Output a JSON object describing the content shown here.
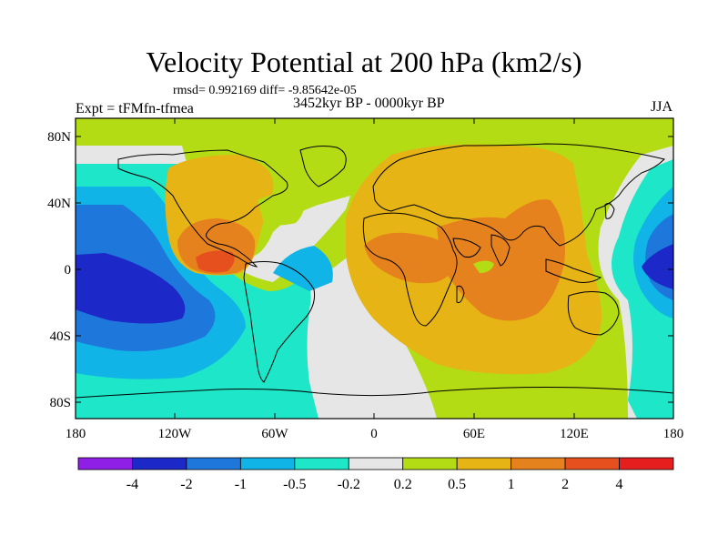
{
  "title": "Velocity Potential at 200 hPa (km2/s)",
  "stats": "rmsd= 0.992169 diff= -9.85642e-05",
  "experiment": "Expt = tFMfn-tfmea",
  "period": "3452kyr BP - 0000kyr BP",
  "season": "JJA",
  "map": {
    "projection": "cylindrical equidistant",
    "lat_ticks": [
      "80N",
      "40N",
      "0",
      "40S",
      "80S"
    ],
    "lon_ticks": [
      "180",
      "120W",
      "60W",
      "0",
      "60E",
      "120E",
      "180"
    ]
  },
  "colorbar": {
    "levels": [
      "-4",
      "-2",
      "-1",
      "-0.5",
      "-0.2",
      "0.2",
      "0.5",
      "1",
      "2",
      "4"
    ],
    "colors": [
      "#8f1ee6",
      "#1c28c8",
      "#1e78dc",
      "#10b4e6",
      "#1ee6c8",
      "#e6e6e6",
      "#b4dc14",
      "#e6b414",
      "#e6821e",
      "#e6501e",
      "#e61e1e"
    ]
  },
  "fields": {
    "land_outline": "#000000",
    "ocean_background": "#e6e6e6"
  }
}
